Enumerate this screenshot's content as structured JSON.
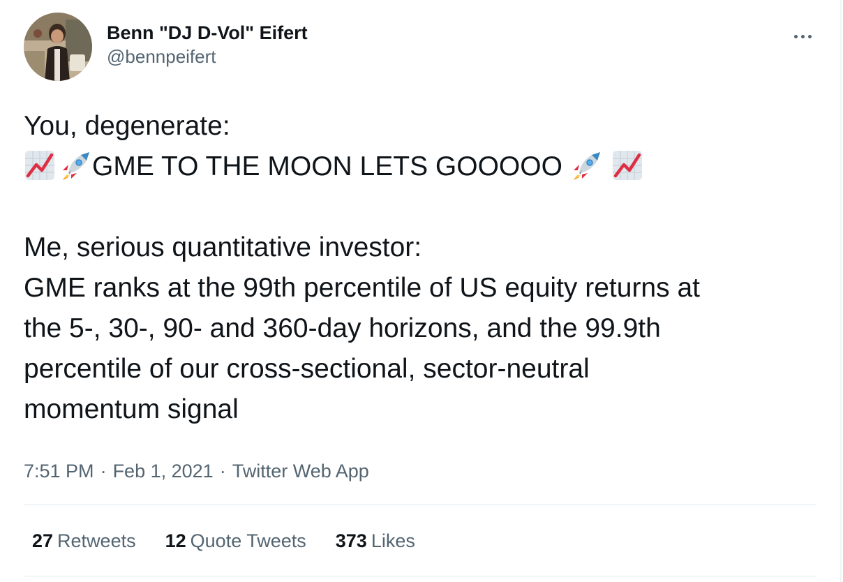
{
  "tweet": {
    "author": {
      "display_name": "Benn \"DJ D-Vol\" Eifert",
      "handle": "@bennpeifert",
      "avatar_icon": "profile-photo"
    },
    "text": {
      "line1": "You, degenerate:",
      "line2": "GME TO THE MOON LETS GOOOOO",
      "line2_emojis": [
        "chart-increasing-emoji",
        "rocket-emoji",
        "rocket-emoji",
        "chart-increasing-emoji"
      ],
      "line3": "Me, serious quantitative investor:",
      "line4": "GME ranks at the 99th percentile of US equity returns at",
      "line5": "the 5-, 30-, 90- and 360-day horizons, and the 99.9th",
      "line6": "percentile of our cross-sectional, sector-neutral",
      "line7": "momentum signal"
    },
    "meta": {
      "time": "7:51 PM",
      "date": "Feb 1, 2021",
      "source": "Twitter Web App",
      "separator": "·"
    },
    "stats": {
      "retweets_count": "27",
      "retweets_label": "Retweets",
      "quote_tweets_count": "12",
      "quote_tweets_label": "Quote Tweets",
      "likes_count": "373",
      "likes_label": "Likes"
    }
  },
  "colors": {
    "text": "#0f1419",
    "secondary": "#536471",
    "divider": "#e1e8ed"
  }
}
